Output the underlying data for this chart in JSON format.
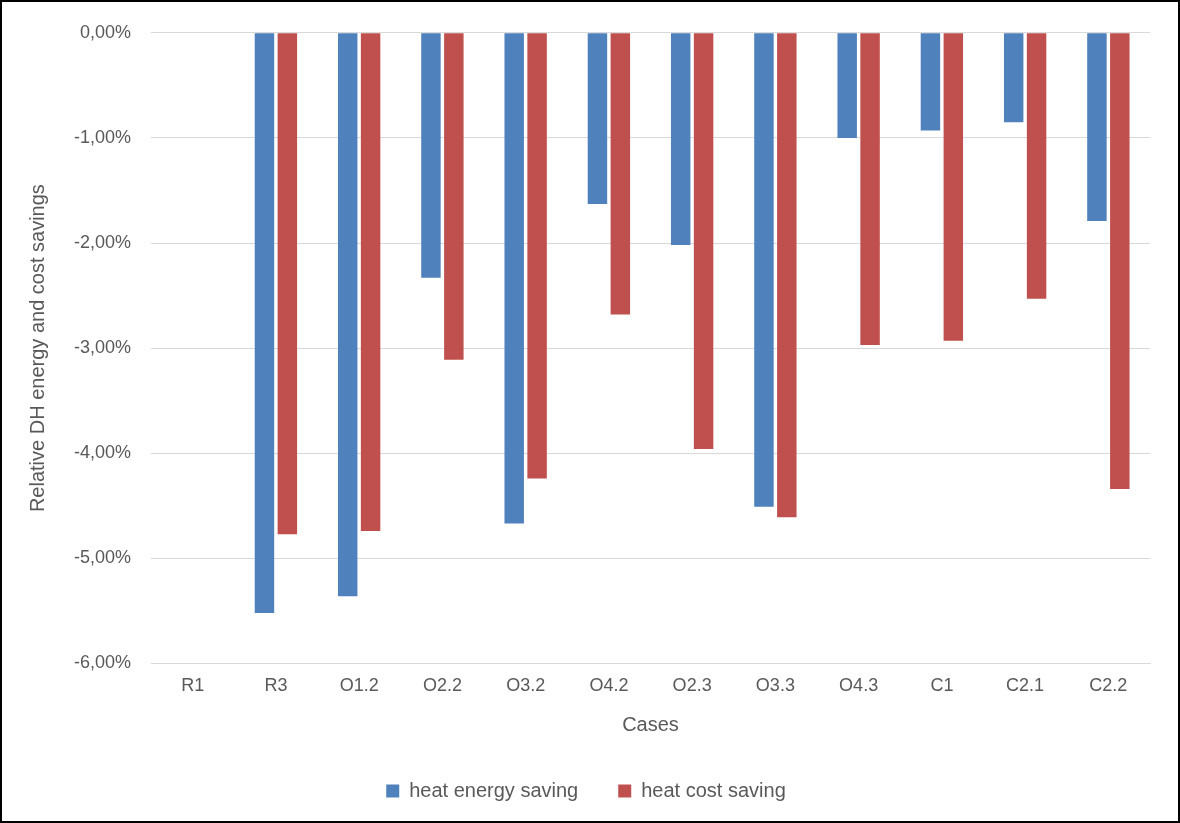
{
  "chart_data": {
    "type": "bar",
    "xlabel": "Cases",
    "ylabel": "Relative DH energy and cost savings",
    "categories": [
      "R1",
      "R3",
      "O1.2",
      "O2.2",
      "O3.2",
      "O4.2",
      "O2.3",
      "O3.3",
      "O4.3",
      "C1",
      "C2.1",
      "C2.2"
    ],
    "series": [
      {
        "name": "heat energy saving",
        "color": "#4f81bd",
        "values": [
          0,
          -5.52,
          -5.36,
          -2.33,
          -4.67,
          -1.63,
          -2.02,
          -4.51,
          -1.0,
          -0.93,
          -0.85,
          -1.79
        ]
      },
      {
        "name": "heat cost saving",
        "color": "#c0504d",
        "values": [
          0,
          -4.77,
          -4.74,
          -3.11,
          -4.24,
          -2.68,
          -3.96,
          -4.61,
          -2.97,
          -2.93,
          -2.53,
          -4.34
        ]
      }
    ],
    "ylim": [
      -6,
      0
    ],
    "yticks": [
      {
        "value": -6,
        "label": "-6,00%"
      },
      {
        "value": -5,
        "label": "-5,00%"
      },
      {
        "value": -4,
        "label": "-4,00%"
      },
      {
        "value": -3,
        "label": "-3,00%"
      },
      {
        "value": -2,
        "label": "-2,00%"
      },
      {
        "value": -1,
        "label": "-1,00%"
      },
      {
        "value": 0,
        "label": "0,00%"
      }
    ],
    "grid": "y",
    "legend": "bottom"
  }
}
